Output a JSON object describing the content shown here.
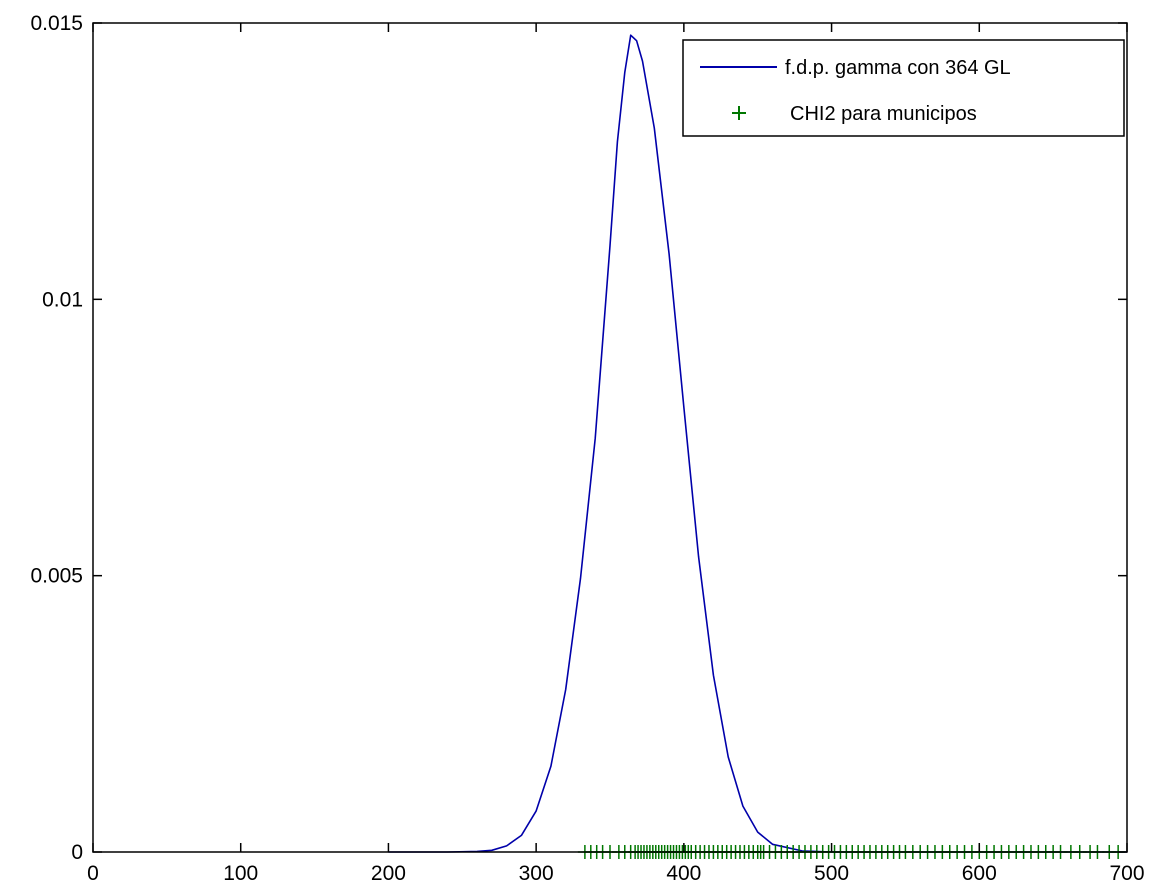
{
  "chart_data": {
    "type": "line",
    "title": "",
    "xlabel": "",
    "ylabel": "",
    "xlim": [
      0,
      700
    ],
    "ylim": [
      0,
      0.015
    ],
    "grid": false,
    "legend_position": "top-right",
    "x_ticks": [
      0,
      100,
      200,
      300,
      400,
      500,
      600,
      700
    ],
    "x_tick_labels": [
      "0",
      "100",
      "200",
      "300",
      "400",
      "500",
      "600",
      "700"
    ],
    "y_ticks": [
      0,
      0.005,
      0.01,
      0.015
    ],
    "y_tick_labels": [
      "0",
      "0.005",
      "0.01",
      "0.015"
    ],
    "series": [
      {
        "name": "f.d.p. gamma con 364 GL",
        "kind": "line",
        "color": "#0000aa",
        "distribution": "chi-square, 364 degrees of freedom",
        "x": [
          200,
          220,
          240,
          260,
          270,
          280,
          290,
          300,
          310,
          320,
          330,
          340,
          350,
          355,
          360,
          364,
          368,
          372,
          380,
          390,
          400,
          410,
          420,
          430,
          440,
          450,
          460,
          480,
          500,
          550,
          600,
          650,
          700
        ],
        "y": [
          0.0,
          0.0,
          0.0,
          1e-05,
          3e-05,
          0.00011,
          0.0003,
          0.00074,
          0.00155,
          0.00294,
          0.00495,
          0.00748,
          0.01097,
          0.01285,
          0.01411,
          0.01478,
          0.01468,
          0.01431,
          0.0131,
          0.01082,
          0.00804,
          0.00534,
          0.0032,
          0.00172,
          0.00083,
          0.00036,
          0.00014,
          2e-05,
          0.0,
          0.0,
          0.0,
          0.0,
          0.0
        ]
      },
      {
        "name": "CHI2 para municipos",
        "kind": "scatter",
        "marker": "+",
        "color": "#007700",
        "x": [
          333,
          337,
          341,
          345,
          350,
          356,
          360,
          364,
          367,
          369,
          371,
          373,
          375,
          377,
          379,
          381,
          383,
          385,
          387,
          389,
          391,
          393,
          395,
          397,
          399,
          401,
          403,
          405,
          408,
          411,
          414,
          417,
          420,
          423,
          426,
          429,
          432,
          435,
          438,
          441,
          444,
          447,
          450,
          452,
          454,
          458,
          462,
          466,
          470,
          474,
          478,
          482,
          486,
          490,
          494,
          498,
          502,
          506,
          510,
          514,
          518,
          522,
          526,
          530,
          534,
          538,
          542,
          546,
          550,
          555,
          560,
          565,
          570,
          575,
          580,
          585,
          590,
          595,
          600,
          605,
          610,
          615,
          620,
          625,
          630,
          635,
          640,
          645,
          650,
          655,
          662,
          668,
          675,
          680,
          688,
          694
        ],
        "y": [
          0,
          0,
          0,
          0,
          0,
          0,
          0,
          0,
          0,
          0,
          0,
          0,
          0,
          0,
          0,
          0,
          0,
          0,
          0,
          0,
          0,
          0,
          0,
          0,
          0,
          0,
          0,
          0,
          0,
          0,
          0,
          0,
          0,
          0,
          0,
          0,
          0,
          0,
          0,
          0,
          0,
          0,
          0,
          0,
          0,
          0,
          0,
          0,
          0,
          0,
          0,
          0,
          0,
          0,
          0,
          0,
          0,
          0,
          0,
          0,
          0,
          0,
          0,
          0,
          0,
          0,
          0,
          0,
          0,
          0,
          0,
          0,
          0,
          0,
          0,
          0,
          0,
          0,
          0,
          0,
          0,
          0,
          0,
          0,
          0,
          0,
          0,
          0,
          0,
          0,
          0,
          0,
          0,
          0,
          0,
          0
        ]
      }
    ]
  },
  "legend": {
    "items": [
      {
        "label": "f.d.p. gamma con 364 GL",
        "symbol": "line",
        "color": "#0000aa"
      },
      {
        "label": "CHI2 para municipos",
        "symbol": "+",
        "color": "#007700"
      }
    ]
  }
}
